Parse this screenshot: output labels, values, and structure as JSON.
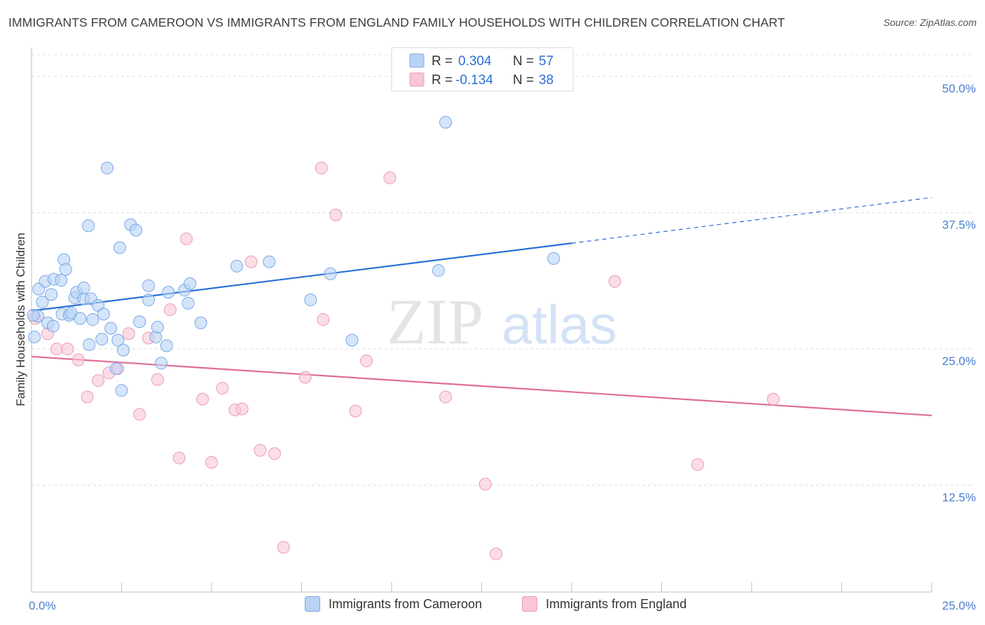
{
  "title": "IMMIGRANTS FROM CAMEROON VS IMMIGRANTS FROM ENGLAND FAMILY HOUSEHOLDS WITH CHILDREN CORRELATION CHART",
  "source": "Source: ZipAtlas.com",
  "watermark": {
    "zip": "ZIP",
    "atlas": "atlas"
  },
  "colors": {
    "blue_fill": "#b9d3f5",
    "blue_stroke": "#7aa7e6",
    "blue_line": "#2b6fd6",
    "pink_fill": "#f8c6d6",
    "pink_stroke": "#ec9bb6",
    "pink_line": "#e06d95",
    "tick_text": "#4a7fcf"
  },
  "legend": {
    "rows": [
      {
        "r_label": "R =",
        "r_value": "0.304",
        "n_label": "N =",
        "n_value": "57"
      },
      {
        "r_label": "R =",
        "r_value": "-0.134",
        "n_label": "N =",
        "n_value": "38"
      }
    ]
  },
  "bottom_legend": [
    "Immigrants from Cameroon",
    "Immigrants from England"
  ],
  "chart_data": {
    "type": "scatter",
    "ylabel": "Family Households with Children",
    "xlabel": "",
    "xlim": [
      0,
      25
    ],
    "ylim": [
      2.7,
      52
    ],
    "x_tick_labels": [
      {
        "value": 0,
        "label": "0.0%"
      },
      {
        "value": 25,
        "label": "25.0%"
      }
    ],
    "y_tick_labels": [
      {
        "value": 12.5,
        "label": "12.5%"
      },
      {
        "value": 25,
        "label": "25.0%"
      },
      {
        "value": 37.5,
        "label": "37.5%"
      },
      {
        "value": 50,
        "label": "50.0%"
      }
    ],
    "grid": true,
    "series": [
      {
        "name": "Immigrants from Cameroon",
        "r": 0.304,
        "n": 57,
        "trend": {
          "x": [
            0,
            15
          ],
          "y": [
            28.5,
            34.7
          ],
          "dashed_to": [
            25,
            38.9
          ]
        },
        "points": [
          [
            0.08,
            26.1
          ],
          [
            0.18,
            28.0
          ],
          [
            0.3,
            29.3
          ],
          [
            0.2,
            30.5
          ],
          [
            0.38,
            31.2
          ],
          [
            0.45,
            27.4
          ],
          [
            0.55,
            30.0
          ],
          [
            0.6,
            27.1
          ],
          [
            0.62,
            31.4
          ],
          [
            0.82,
            31.3
          ],
          [
            0.9,
            33.2
          ],
          [
            0.95,
            32.3
          ],
          [
            0.85,
            28.2
          ],
          [
            1.05,
            28.1
          ],
          [
            1.1,
            28.3
          ],
          [
            1.2,
            29.7
          ],
          [
            1.25,
            30.2
          ],
          [
            1.35,
            27.8
          ],
          [
            1.45,
            29.6
          ],
          [
            1.45,
            30.6
          ],
          [
            1.65,
            29.6
          ],
          [
            1.7,
            27.7
          ],
          [
            1.85,
            29.0
          ],
          [
            2.0,
            28.2
          ],
          [
            1.95,
            25.9
          ],
          [
            2.2,
            26.9
          ],
          [
            2.4,
            25.8
          ],
          [
            2.55,
            24.9
          ],
          [
            2.5,
            21.2
          ],
          [
            2.35,
            23.2
          ],
          [
            1.58,
            36.3
          ],
          [
            2.1,
            41.6
          ],
          [
            2.45,
            34.3
          ],
          [
            2.75,
            36.4
          ],
          [
            2.9,
            35.9
          ],
          [
            1.6,
            25.4
          ],
          [
            3.0,
            27.5
          ],
          [
            3.25,
            29.5
          ],
          [
            3.25,
            30.8
          ],
          [
            3.45,
            26.1
          ],
          [
            3.5,
            27.0
          ],
          [
            3.75,
            25.3
          ],
          [
            3.6,
            23.7
          ],
          [
            3.8,
            30.2
          ],
          [
            4.25,
            30.4
          ],
          [
            4.35,
            29.2
          ],
          [
            4.4,
            31.0
          ],
          [
            4.7,
            27.4
          ],
          [
            5.7,
            32.6
          ],
          [
            6.6,
            33.0
          ],
          [
            7.75,
            29.5
          ],
          [
            8.3,
            31.9
          ],
          [
            8.9,
            25.8
          ],
          [
            11.3,
            32.2
          ],
          [
            11.5,
            45.8
          ],
          [
            14.5,
            33.3
          ],
          [
            0.05,
            28.1
          ]
        ]
      },
      {
        "name": "Immigrants from England",
        "r": -0.134,
        "n": 38,
        "trend": {
          "x": [
            0,
            25
          ],
          "y": [
            24.3,
            18.9
          ]
        },
        "points": [
          [
            0.1,
            27.8
          ],
          [
            0.45,
            26.4
          ],
          [
            0.7,
            25.0
          ],
          [
            1.0,
            25.0
          ],
          [
            1.3,
            24.0
          ],
          [
            1.55,
            20.6
          ],
          [
            1.85,
            22.1
          ],
          [
            2.15,
            22.8
          ],
          [
            2.4,
            23.2
          ],
          [
            2.7,
            26.4
          ],
          [
            3.0,
            19.0
          ],
          [
            3.25,
            26.0
          ],
          [
            3.5,
            22.2
          ],
          [
            3.85,
            28.6
          ],
          [
            4.1,
            15.0
          ],
          [
            4.3,
            35.1
          ],
          [
            4.75,
            20.4
          ],
          [
            5.0,
            14.6
          ],
          [
            5.3,
            21.4
          ],
          [
            5.65,
            19.4
          ],
          [
            5.85,
            19.5
          ],
          [
            6.1,
            33.0
          ],
          [
            6.35,
            15.7
          ],
          [
            6.75,
            15.4
          ],
          [
            7.0,
            6.8
          ],
          [
            7.6,
            22.4
          ],
          [
            8.05,
            41.6
          ],
          [
            8.1,
            27.7
          ],
          [
            8.45,
            37.3
          ],
          [
            9.0,
            19.3
          ],
          [
            9.3,
            23.9
          ],
          [
            9.95,
            40.7
          ],
          [
            11.5,
            20.6
          ],
          [
            12.6,
            12.6
          ],
          [
            12.9,
            6.2
          ],
          [
            16.2,
            31.2
          ],
          [
            18.5,
            14.4
          ],
          [
            20.6,
            20.4
          ]
        ]
      }
    ]
  }
}
